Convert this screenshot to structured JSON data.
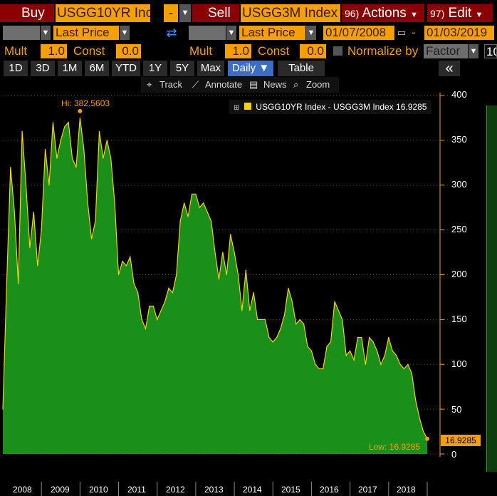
{
  "toolbar": {
    "buy_label": "Buy",
    "ticker1": "USGG10YR Inc",
    "minus_label": "-",
    "sell_label": "Sell",
    "ticker2": "USGG3M Index",
    "actions_num": "96)",
    "actions_label": "Actions",
    "edit_num": "97)",
    "edit_label": "Edit"
  },
  "row2": {
    "field1": "Last Price",
    "field2": "Last Price",
    "date_from": "01/07/2008",
    "date_to": "01/03/2019"
  },
  "row3": {
    "mult1_label": "Mult",
    "mult1_value": "1.0",
    "const1_label": "Const",
    "const1_value": "0.0",
    "mult2_label": "Mult",
    "mult2_value": "1.0",
    "const2_label": "Const",
    "const2_value": "0.0",
    "normalize_label": "Normalize by",
    "factor_value": "Factor",
    "cut_value": "10"
  },
  "tabs": [
    "1D",
    "3D",
    "1M",
    "6M",
    "YTD",
    "1Y",
    "5Y",
    "Max"
  ],
  "daily_label": "Daily ▼",
  "table_label": "Table",
  "collapse_icon": "«",
  "chart_tools": {
    "track": "Track",
    "annotate": "Annotate",
    "news": "News",
    "zoom": "Zoom"
  },
  "colors": {
    "area_fill": "#1a8f1a",
    "line": "#f5d400",
    "accent": "#f5a000",
    "red": "#8b0000"
  },
  "chart_data": {
    "type": "area",
    "legend": "USGG10YR Index - USGG3M Index 16.9285",
    "hi_label": "Hi: 382.5603",
    "low_label": "Low: 16.9285",
    "last_value_label": "16.9285",
    "x_ticks": [
      "2008",
      "2009",
      "2010",
      "2011",
      "2012",
      "2013",
      "2014",
      "2015",
      "2016",
      "2017",
      "2018"
    ],
    "y_ticks": [
      "400",
      "350",
      "300",
      "250",
      "200",
      "150",
      "100",
      "50",
      "0"
    ],
    "ylim": [
      0,
      400
    ],
    "x": [
      2008.0,
      2008.1,
      2008.2,
      2008.3,
      2008.4,
      2008.5,
      2008.6,
      2008.7,
      2008.8,
      2008.9,
      2009.0,
      2009.1,
      2009.2,
      2009.3,
      2009.4,
      2009.5,
      2009.6,
      2009.7,
      2009.8,
      2009.9,
      2010.0,
      2010.1,
      2010.2,
      2010.3,
      2010.4,
      2010.5,
      2010.6,
      2010.7,
      2010.8,
      2010.9,
      2011.0,
      2011.1,
      2011.2,
      2011.3,
      2011.4,
      2011.5,
      2011.6,
      2011.7,
      2011.8,
      2011.9,
      2012.0,
      2012.1,
      2012.2,
      2012.3,
      2012.4,
      2012.5,
      2012.6,
      2012.7,
      2012.8,
      2012.9,
      2013.0,
      2013.1,
      2013.2,
      2013.3,
      2013.4,
      2013.5,
      2013.6,
      2013.7,
      2013.8,
      2013.9,
      2014.0,
      2014.1,
      2014.2,
      2014.3,
      2014.4,
      2014.5,
      2014.6,
      2014.7,
      2014.8,
      2014.9,
      2015.0,
      2015.1,
      2015.2,
      2015.3,
      2015.4,
      2015.5,
      2015.6,
      2015.7,
      2015.8,
      2015.9,
      2016.0,
      2016.1,
      2016.2,
      2016.3,
      2016.4,
      2016.5,
      2016.6,
      2016.7,
      2016.8,
      2016.9,
      2017.0,
      2017.1,
      2017.2,
      2017.3,
      2017.4,
      2017.5,
      2017.6,
      2017.7,
      2017.8,
      2017.9,
      2018.0,
      2018.1,
      2018.2,
      2018.3,
      2018.4,
      2018.5,
      2018.6,
      2018.7,
      2018.8,
      2018.9,
      2019.0
    ],
    "values": [
      50,
      190,
      320,
      270,
      190,
      360,
      300,
      230,
      270,
      210,
      250,
      340,
      300,
      370,
      330,
      350,
      365,
      370,
      330,
      320,
      375,
      340,
      280,
      240,
      260,
      360,
      330,
      350,
      330,
      280,
      200,
      215,
      210,
      220,
      190,
      180,
      150,
      140,
      165,
      165,
      150,
      160,
      170,
      185,
      180,
      200,
      260,
      280,
      265,
      290,
      290,
      275,
      280,
      270,
      260,
      225,
      195,
      225,
      200,
      245,
      225,
      200,
      160,
      205,
      160,
      180,
      150,
      150,
      150,
      130,
      125,
      130,
      140,
      155,
      185,
      170,
      145,
      150,
      145,
      120,
      115,
      100,
      95,
      95,
      120,
      125,
      170,
      160,
      150,
      110,
      115,
      105,
      130,
      130,
      100,
      130,
      125,
      115,
      100,
      110,
      130,
      115,
      110,
      100,
      95,
      100,
      90,
      60,
      40,
      25,
      17
    ]
  }
}
